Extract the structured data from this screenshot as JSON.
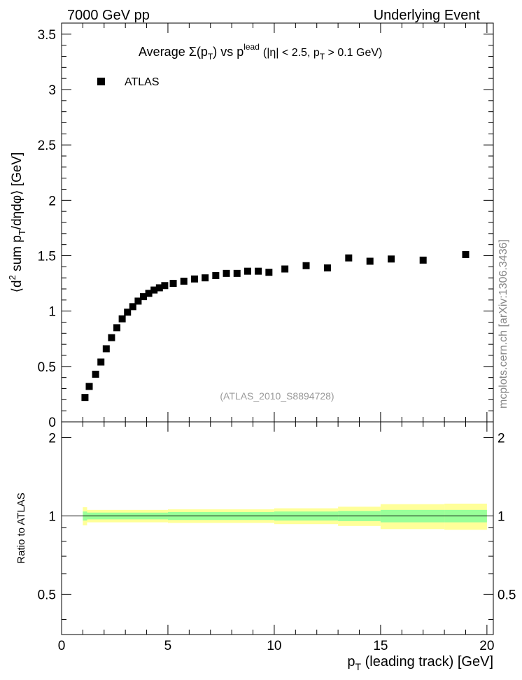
{
  "header": {
    "left": "7000 GeV pp",
    "right": "Underlying Event"
  },
  "side_label": "mcplots.cern.ch [arXiv:1306.3436]",
  "chart_data": [
    {
      "type": "scatter",
      "panel": "main",
      "title": {
        "prefix": "Average ",
        "sigma": "Σ(p",
        "sub_T": "T",
        "mid": ") vs p",
        "sup_lead": "lead",
        "rest": " (|η| < 2.5, p",
        "rest_sub": "T",
        "end": " > 0.1 GeV)"
      },
      "ylabel": {
        "open": "⟨d",
        "sup": "2",
        "mid": " sum p",
        "sub": "T",
        "close": "/dηdφ⟩ [GeV]"
      },
      "analysis_tag": "(ATLAS_2010_S8894728)",
      "legend": [
        {
          "name": "ATLAS",
          "marker": "square",
          "color": "#000000"
        }
      ],
      "xlim": [
        0,
        20.3
      ],
      "ylim": [
        0,
        3.6
      ],
      "yticks": [
        "0",
        "0.5",
        "1",
        "1.5",
        "2",
        "2.5",
        "3",
        "3.5"
      ],
      "series": [
        {
          "name": "ATLAS",
          "x": [
            1.1,
            1.3,
            1.6,
            1.85,
            2.1,
            2.35,
            2.6,
            2.85,
            3.1,
            3.35,
            3.6,
            3.85,
            4.1,
            4.35,
            4.6,
            4.85,
            5.25,
            5.75,
            6.25,
            6.75,
            7.25,
            7.75,
            8.25,
            8.75,
            9.25,
            9.75,
            10.5,
            11.5,
            12.5,
            13.5,
            14.5,
            15.5,
            17.0,
            19.0
          ],
          "y": [
            0.22,
            0.32,
            0.43,
            0.54,
            0.66,
            0.76,
            0.85,
            0.93,
            0.99,
            1.04,
            1.09,
            1.13,
            1.16,
            1.19,
            1.21,
            1.23,
            1.25,
            1.27,
            1.29,
            1.3,
            1.32,
            1.34,
            1.34,
            1.36,
            1.36,
            1.35,
            1.38,
            1.41,
            1.39,
            1.48,
            1.45,
            1.47,
            1.46,
            1.51
          ]
        }
      ]
    },
    {
      "type": "area",
      "panel": "ratio",
      "ylabel": "Ratio to ATLAS",
      "xlabel_main": "p",
      "xlabel_sub": "T",
      "xlabel_rest": " (leading track) [GeV]",
      "xlim": [
        0,
        20.3
      ],
      "ylim": [
        0.35,
        2.3
      ],
      "yticks": [
        "0.5",
        "1",
        "2"
      ],
      "xticks": [
        "0",
        "5",
        "10",
        "15",
        "20"
      ],
      "reference_line": 1.0,
      "bins": [
        {
          "lo": 1.0,
          "hi": 1.2,
          "in": 0.04,
          "out": 0.08
        },
        {
          "lo": 1.2,
          "hi": 5.0,
          "in": 0.03,
          "out": 0.055
        },
        {
          "lo": 5.0,
          "hi": 10.0,
          "in": 0.035,
          "out": 0.06
        },
        {
          "lo": 10.0,
          "hi": 13.0,
          "in": 0.04,
          "out": 0.07
        },
        {
          "lo": 13.0,
          "hi": 15.0,
          "in": 0.045,
          "out": 0.085
        },
        {
          "lo": 15.0,
          "hi": 18.0,
          "in": 0.055,
          "out": 0.11
        },
        {
          "lo": 18.0,
          "hi": 20.0,
          "in": 0.055,
          "out": 0.115
        }
      ],
      "colors": {
        "inner": "#99ff99",
        "outer": "#ffff99",
        "line": "#000000"
      }
    }
  ]
}
